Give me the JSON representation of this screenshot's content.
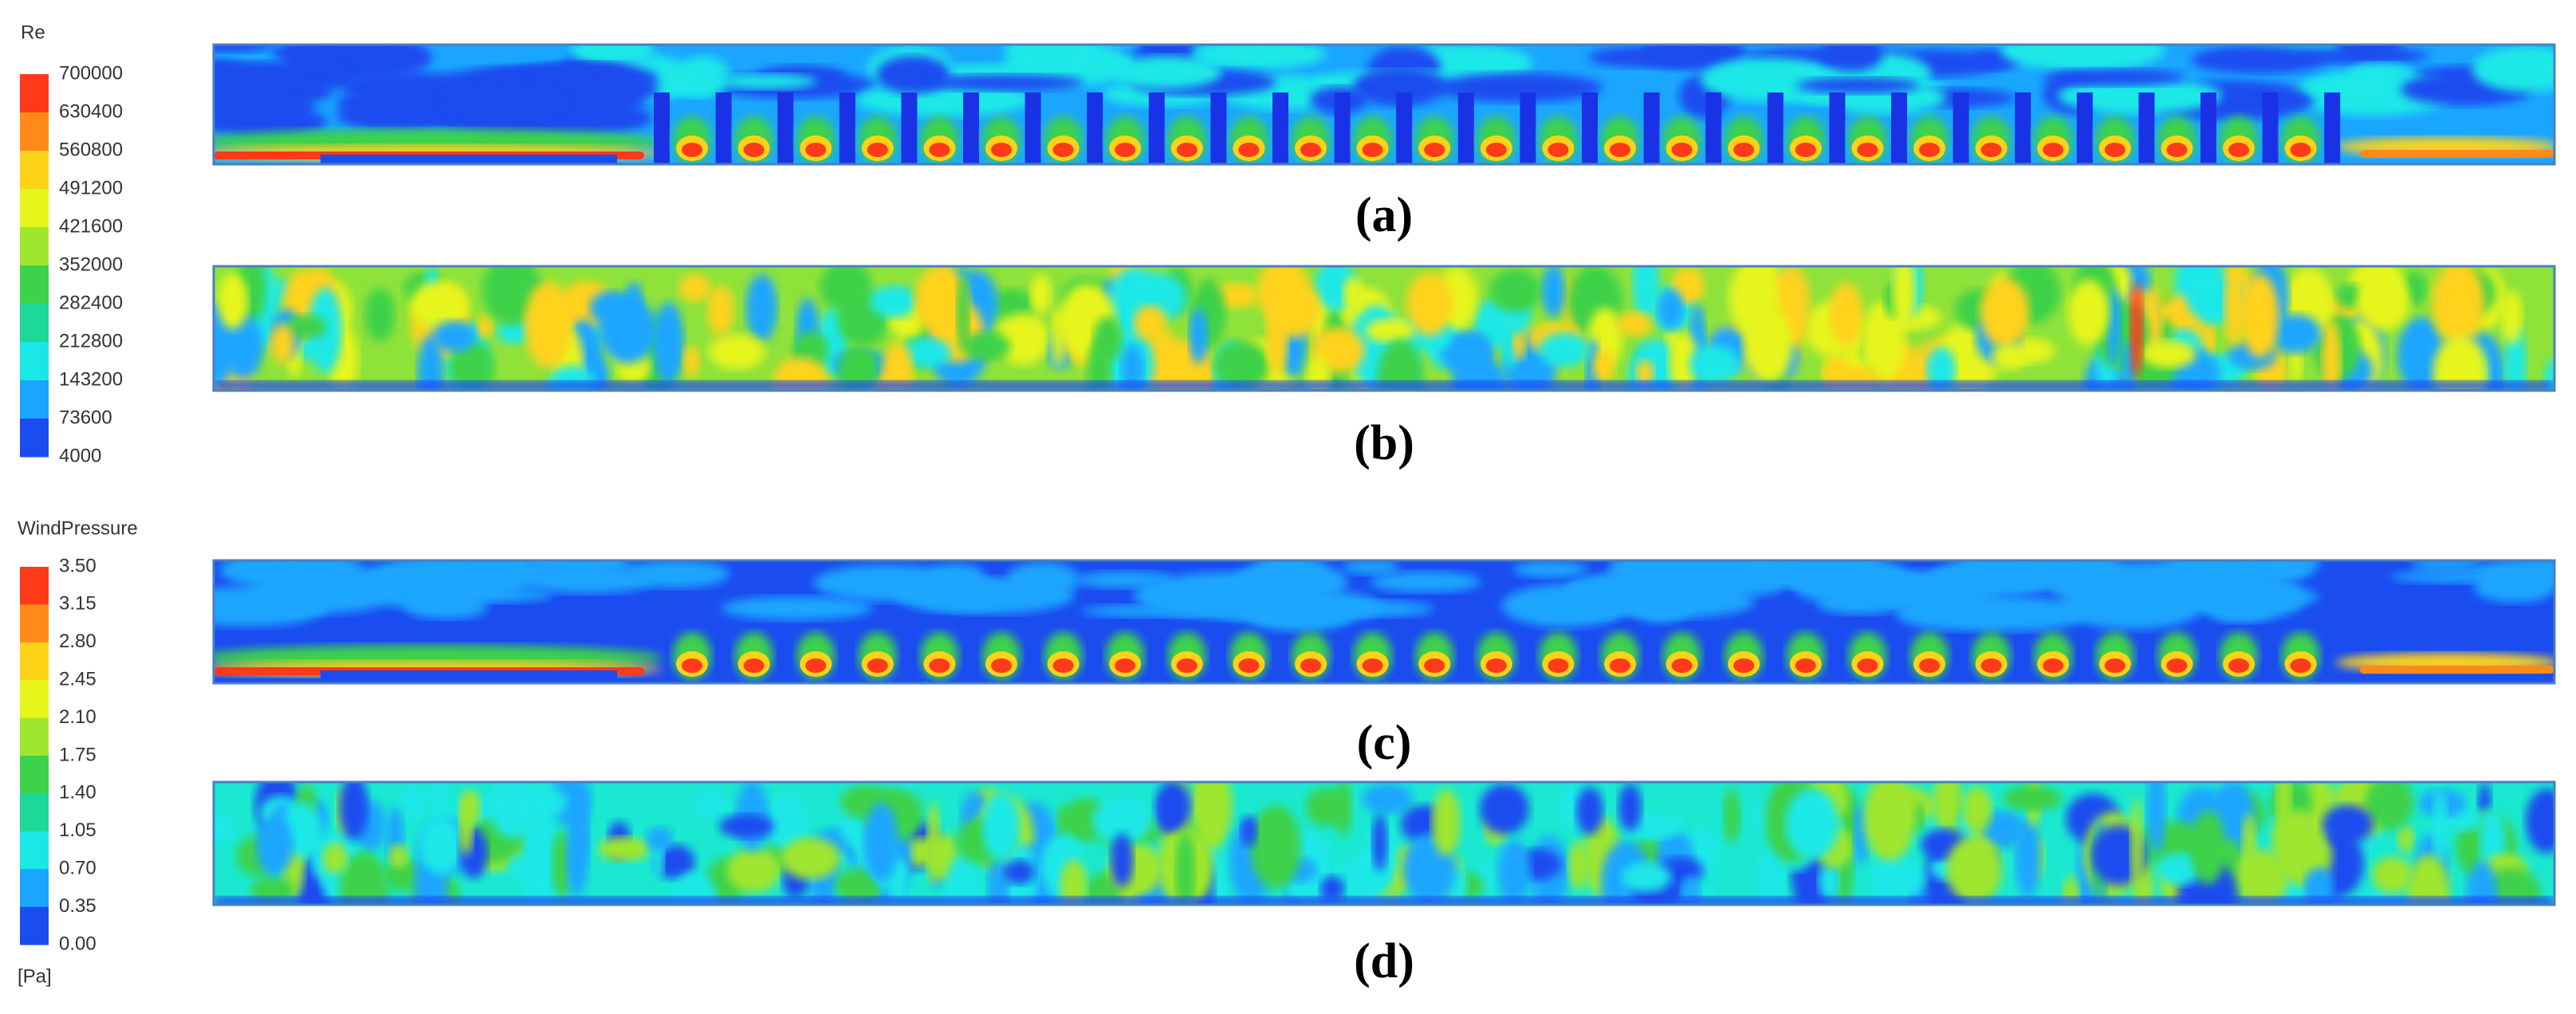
{
  "legend_re": {
    "title": "Re",
    "ticks": [
      "700000",
      "630400",
      "560800",
      "491200",
      "421600",
      "352000",
      "282400",
      "212800",
      "143200",
      "73600",
      "4000"
    ]
  },
  "legend_pressure": {
    "title": "WindPressure",
    "ticks": [
      "3.50",
      "3.15",
      "2.80",
      "2.45",
      "2.10",
      "1.75",
      "1.40",
      "1.05",
      "0.70",
      "0.35",
      "0.00"
    ],
    "unit": "[Pa]"
  },
  "panels": [
    "(a)",
    "(b)",
    "(c)",
    "(d)"
  ]
}
